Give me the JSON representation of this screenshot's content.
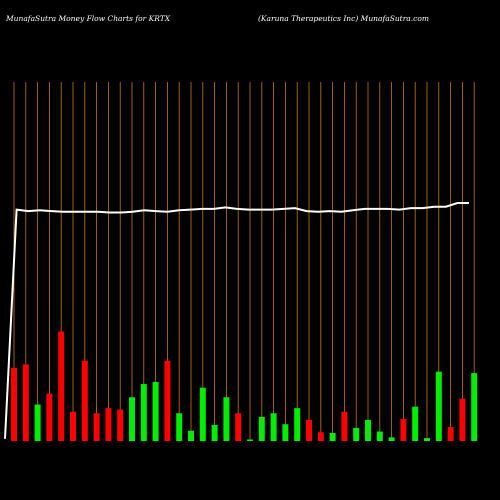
{
  "header": {
    "title_left": "MunafaSutra  Money Flow  Charts for KRTX",
    "title_right": "(Karuna  Therapeutics Inc) MunafaSutra.com"
  },
  "chart_data": {
    "type": "bar",
    "title": "MunafaSutra  Money Flow  Charts for KRTX",
    "subtitle": "(Karuna  Therapeutics Inc) MunafaSutra.com",
    "bar_colors": {
      "up": "#00ee00",
      "down": "#ff0000"
    },
    "line_color": "#ffffff",
    "grid_color": "#c87a00",
    "series": [
      {
        "name": "money_flow",
        "values": [
          100,
          105,
          50,
          65,
          150,
          40,
          110,
          38,
          45,
          43,
          60,
          78,
          81,
          110,
          38,
          14,
          73,
          22,
          60,
          38,
          2,
          33,
          38,
          23,
          45,
          29,
          12,
          11,
          40,
          18,
          29,
          13,
          5,
          30,
          47,
          4,
          95,
          19,
          58,
          93
        ],
        "directions": [
          "down",
          "down",
          "up",
          "down",
          "down",
          "down",
          "down",
          "down",
          "down",
          "down",
          "up",
          "up",
          "up",
          "down",
          "up",
          "up",
          "up",
          "up",
          "up",
          "down",
          "up",
          "up",
          "up",
          "up",
          "up",
          "down",
          "down",
          "up",
          "down",
          "up",
          "up",
          "up",
          "up",
          "down",
          "up",
          "up",
          "up",
          "down",
          "down",
          "up"
        ]
      },
      {
        "name": "price",
        "values": [
          3,
          317,
          315,
          316,
          315,
          314,
          314,
          314,
          314,
          313,
          313,
          314,
          316,
          315,
          314,
          316,
          317,
          318,
          318,
          320,
          318,
          317,
          317,
          317,
          318,
          319,
          315,
          314,
          315,
          314,
          316,
          318,
          318,
          318,
          317,
          319,
          319,
          321,
          321,
          326,
          326
        ]
      }
    ]
  }
}
